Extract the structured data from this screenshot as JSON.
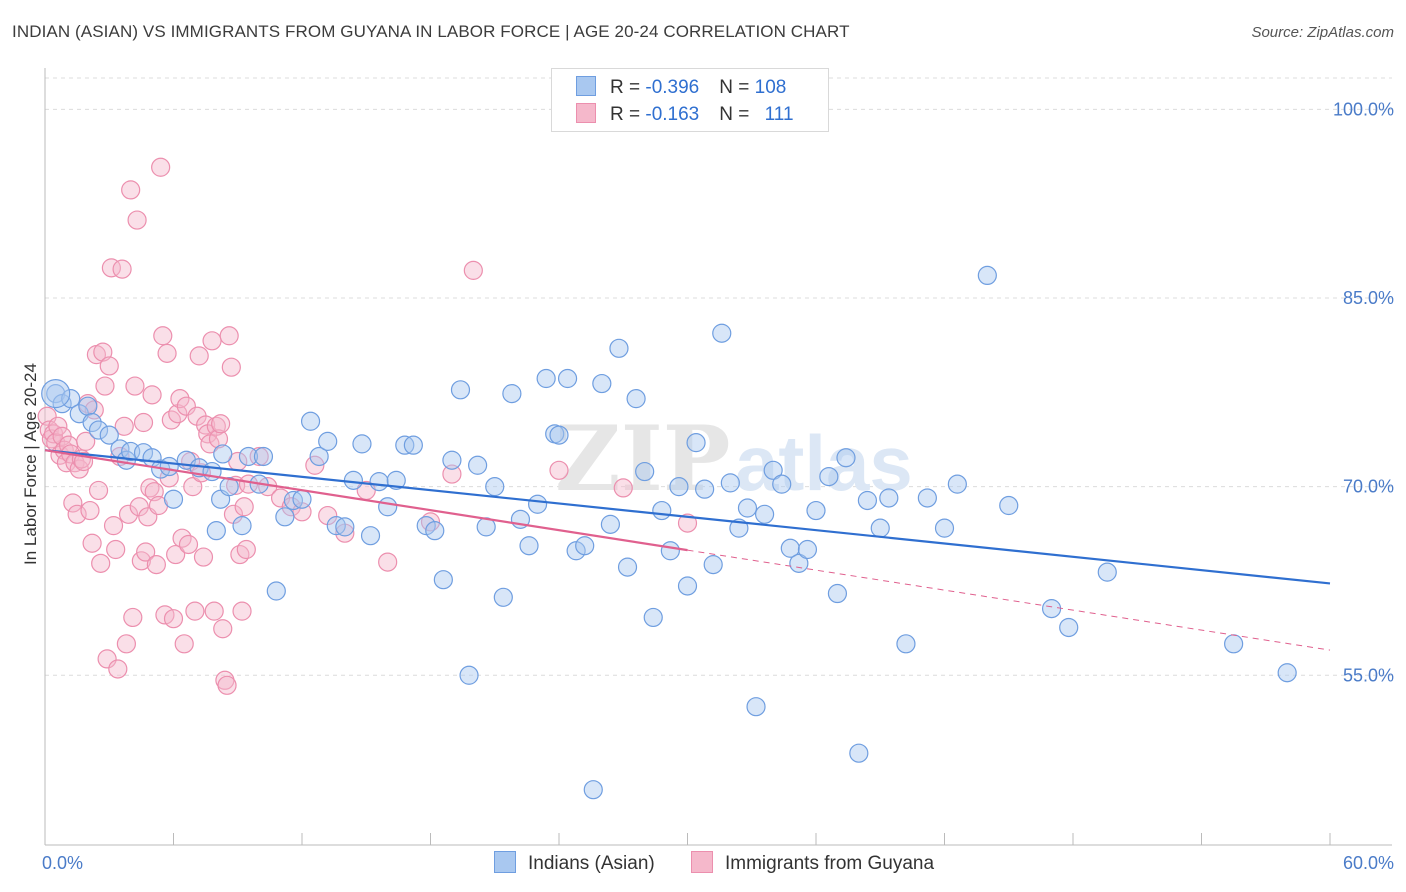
{
  "title": "INDIAN (ASIAN) VS IMMIGRANTS FROM GUYANA IN LABOR FORCE | AGE 20-24 CORRELATION CHART",
  "source": "Source: ZipAtlas.com",
  "legend": {
    "row1": {
      "r_label": "R = ",
      "r_value": "-0.396",
      "n_label": "N = ",
      "n_value": "108"
    },
    "row2": {
      "r_label": "R = ",
      "r_value": "-0.163",
      "n_label": "N = ",
      "n_value": "111"
    }
  },
  "bottom_legend": {
    "series1": "Indians (Asian)",
    "series2": "Immigrants from Guyana"
  },
  "watermark": {
    "zip": "ZIP",
    "atlas": "atlas"
  },
  "colors": {
    "blue_fill": "#a9c8f0",
    "blue_stroke": "#6f9ee0",
    "blue_line": "#2f6fd0",
    "pink_fill": "#f5b8cb",
    "pink_stroke": "#ec8fae",
    "pink_line": "#e0608e"
  },
  "chart_data": {
    "type": "scatter",
    "xlabel": "",
    "ylabel": "In Labor Force | Age 20-24",
    "x_tick_labels": [
      "0.0%",
      "60.0%"
    ],
    "y_tick_labels": [
      "100.0%",
      "85.0%",
      "70.0%",
      "55.0%"
    ],
    "y_ticks": [
      100,
      85,
      70,
      55
    ],
    "xlim": [
      0,
      60
    ],
    "ylim": [
      41.5,
      102.5
    ],
    "grid": true,
    "series": [
      {
        "name": "Indians (Asian)",
        "r": -0.396,
        "n": 108,
        "trend": {
          "x0": 0,
          "y0": 72.9,
          "x1": 60,
          "y1": 62.3
        },
        "points": [
          [
            0.5,
            77.4
          ],
          [
            0.8,
            76.6
          ],
          [
            1.2,
            77.0
          ],
          [
            1.6,
            75.8
          ],
          [
            2.0,
            76.4
          ],
          [
            2.2,
            75.1
          ],
          [
            2.5,
            74.5
          ],
          [
            3.0,
            74.1
          ],
          [
            3.5,
            73.0
          ],
          [
            3.8,
            72.1
          ],
          [
            4.0,
            72.8
          ],
          [
            4.6,
            72.7
          ],
          [
            5.0,
            72.3
          ],
          [
            5.4,
            71.4
          ],
          [
            5.8,
            71.6
          ],
          [
            6.0,
            69.0
          ],
          [
            6.6,
            72.1
          ],
          [
            7.2,
            71.5
          ],
          [
            7.8,
            71.2
          ],
          [
            8.0,
            66.5
          ],
          [
            8.2,
            69.0
          ],
          [
            8.6,
            70.0
          ],
          [
            8.3,
            72.6
          ],
          [
            9.2,
            66.9
          ],
          [
            9.5,
            72.4
          ],
          [
            10.0,
            70.2
          ],
          [
            10.2,
            72.4
          ],
          [
            10.8,
            61.7
          ],
          [
            11.2,
            67.6
          ],
          [
            11.6,
            68.9
          ],
          [
            12.0,
            69.0
          ],
          [
            12.4,
            75.2
          ],
          [
            12.8,
            72.4
          ],
          [
            13.2,
            73.6
          ],
          [
            13.6,
            66.9
          ],
          [
            14.0,
            66.8
          ],
          [
            14.4,
            70.5
          ],
          [
            14.8,
            73.4
          ],
          [
            15.2,
            66.1
          ],
          [
            15.6,
            70.4
          ],
          [
            16.0,
            68.4
          ],
          [
            16.4,
            70.5
          ],
          [
            16.8,
            73.3
          ],
          [
            17.2,
            73.3
          ],
          [
            17.8,
            66.9
          ],
          [
            18.2,
            66.5
          ],
          [
            18.6,
            62.6
          ],
          [
            19.0,
            72.1
          ],
          [
            19.4,
            77.7
          ],
          [
            19.8,
            55.0
          ],
          [
            20.2,
            71.7
          ],
          [
            20.6,
            66.8
          ],
          [
            21.0,
            70.0
          ],
          [
            21.4,
            61.2
          ],
          [
            21.8,
            77.4
          ],
          [
            22.2,
            67.4
          ],
          [
            22.6,
            65.3
          ],
          [
            23.0,
            68.6
          ],
          [
            23.4,
            78.6
          ],
          [
            23.8,
            74.2
          ],
          [
            24.0,
            74.1
          ],
          [
            24.4,
            78.6
          ],
          [
            24.8,
            64.9
          ],
          [
            25.2,
            65.3
          ],
          [
            25.6,
            45.9
          ],
          [
            26.0,
            78.2
          ],
          [
            26.4,
            67.0
          ],
          [
            26.8,
            81.0
          ],
          [
            27.2,
            63.6
          ],
          [
            27.6,
            77.0
          ],
          [
            28.0,
            71.2
          ],
          [
            28.4,
            59.6
          ],
          [
            28.8,
            68.1
          ],
          [
            29.2,
            64.9
          ],
          [
            29.6,
            70.0
          ],
          [
            30.0,
            62.1
          ],
          [
            30.4,
            73.5
          ],
          [
            30.8,
            69.8
          ],
          [
            31.2,
            63.8
          ],
          [
            31.6,
            82.2
          ],
          [
            32.0,
            70.3
          ],
          [
            32.4,
            66.7
          ],
          [
            32.8,
            68.3
          ],
          [
            33.2,
            52.5
          ],
          [
            33.6,
            67.8
          ],
          [
            34.0,
            71.3
          ],
          [
            34.4,
            70.2
          ],
          [
            34.8,
            65.1
          ],
          [
            35.2,
            63.9
          ],
          [
            35.6,
            65.0
          ],
          [
            36.0,
            68.1
          ],
          [
            36.6,
            70.8
          ],
          [
            37.0,
            61.5
          ],
          [
            37.4,
            72.3
          ],
          [
            38.0,
            48.8
          ],
          [
            38.4,
            68.9
          ],
          [
            39.0,
            66.7
          ],
          [
            39.4,
            69.1
          ],
          [
            40.2,
            57.5
          ],
          [
            41.2,
            69.1
          ],
          [
            42.0,
            66.7
          ],
          [
            42.6,
            70.2
          ],
          [
            44.0,
            86.8
          ],
          [
            45.0,
            68.5
          ],
          [
            47.0,
            60.3
          ],
          [
            47.8,
            58.8
          ],
          [
            49.6,
            63.2
          ],
          [
            55.5,
            57.5
          ],
          [
            58.0,
            55.2
          ]
        ]
      },
      {
        "name": "Immigrants from Guyana",
        "r": -0.163,
        "n": 111,
        "trend": {
          "x0": 0,
          "y0": 72.9,
          "x1": 60,
          "y1": 57.0,
          "solid_until_x": 30
        },
        "points": [
          [
            0.1,
            75.6
          ],
          [
            0.2,
            74.5
          ],
          [
            0.3,
            73.8
          ],
          [
            0.4,
            74.2
          ],
          [
            0.5,
            73.5
          ],
          [
            0.6,
            74.8
          ],
          [
            0.7,
            72.5
          ],
          [
            0.8,
            74.0
          ],
          [
            0.9,
            72.9
          ],
          [
            1.0,
            71.9
          ],
          [
            1.1,
            73.3
          ],
          [
            1.2,
            72.6
          ],
          [
            1.3,
            68.7
          ],
          [
            1.4,
            71.9
          ],
          [
            1.5,
            67.8
          ],
          [
            1.6,
            71.4
          ],
          [
            1.7,
            72.2
          ],
          [
            1.8,
            72.0
          ],
          [
            1.9,
            73.6
          ],
          [
            2.0,
            76.6
          ],
          [
            2.1,
            68.1
          ],
          [
            2.2,
            65.5
          ],
          [
            2.3,
            76.1
          ],
          [
            2.4,
            80.5
          ],
          [
            2.5,
            69.7
          ],
          [
            2.6,
            63.9
          ],
          [
            2.7,
            80.7
          ],
          [
            2.8,
            78.0
          ],
          [
            2.9,
            56.3
          ],
          [
            3.0,
            79.6
          ],
          [
            3.1,
            87.4
          ],
          [
            3.2,
            66.9
          ],
          [
            3.3,
            65.0
          ],
          [
            3.4,
            55.5
          ],
          [
            3.5,
            72.4
          ],
          [
            3.6,
            87.3
          ],
          [
            3.7,
            74.8
          ],
          [
            3.8,
            57.5
          ],
          [
            3.9,
            67.8
          ],
          [
            4.0,
            93.6
          ],
          [
            4.1,
            59.6
          ],
          [
            4.2,
            78.0
          ],
          [
            4.3,
            91.2
          ],
          [
            4.4,
            68.4
          ],
          [
            4.5,
            64.1
          ],
          [
            4.6,
            75.1
          ],
          [
            4.7,
            64.8
          ],
          [
            4.8,
            67.6
          ],
          [
            4.9,
            69.9
          ],
          [
            5.0,
            77.3
          ],
          [
            5.1,
            69.6
          ],
          [
            5.2,
            63.8
          ],
          [
            5.3,
            68.5
          ],
          [
            5.4,
            95.4
          ],
          [
            5.5,
            82.0
          ],
          [
            5.6,
            59.8
          ],
          [
            5.7,
            80.6
          ],
          [
            5.8,
            70.7
          ],
          [
            5.9,
            75.3
          ],
          [
            6.0,
            59.5
          ],
          [
            6.1,
            64.6
          ],
          [
            6.2,
            75.8
          ],
          [
            6.3,
            77.0
          ],
          [
            6.4,
            65.9
          ],
          [
            6.5,
            57.5
          ],
          [
            6.6,
            76.4
          ],
          [
            6.7,
            65.4
          ],
          [
            6.8,
            72.0
          ],
          [
            6.9,
            70.0
          ],
          [
            7.0,
            60.1
          ],
          [
            7.1,
            75.6
          ],
          [
            7.2,
            80.4
          ],
          [
            7.3,
            71.1
          ],
          [
            7.4,
            64.4
          ],
          [
            7.5,
            74.9
          ],
          [
            7.6,
            74.2
          ],
          [
            7.7,
            73.4
          ],
          [
            7.8,
            81.6
          ],
          [
            7.9,
            60.1
          ],
          [
            8.0,
            74.8
          ],
          [
            8.1,
            73.8
          ],
          [
            8.2,
            75.0
          ],
          [
            8.3,
            58.7
          ],
          [
            8.4,
            54.6
          ],
          [
            8.5,
            54.2
          ],
          [
            8.6,
            82.0
          ],
          [
            8.7,
            79.5
          ],
          [
            8.8,
            67.8
          ],
          [
            8.9,
            70.1
          ],
          [
            9.0,
            72.0
          ],
          [
            9.1,
            64.6
          ],
          [
            9.2,
            60.1
          ],
          [
            9.3,
            68.4
          ],
          [
            9.4,
            65.0
          ],
          [
            9.5,
            70.2
          ],
          [
            10.0,
            72.4
          ],
          [
            10.4,
            70.0
          ],
          [
            11.0,
            69.1
          ],
          [
            11.5,
            68.4
          ],
          [
            12.0,
            68.0
          ],
          [
            12.6,
            71.7
          ],
          [
            13.2,
            67.7
          ],
          [
            14.0,
            66.3
          ],
          [
            15.0,
            69.7
          ],
          [
            16.0,
            64.0
          ],
          [
            18.0,
            67.2
          ],
          [
            19.0,
            71.0
          ],
          [
            20.0,
            87.2
          ],
          [
            24.0,
            71.3
          ],
          [
            27.0,
            69.9
          ],
          [
            30.0,
            67.1
          ]
        ]
      }
    ]
  }
}
